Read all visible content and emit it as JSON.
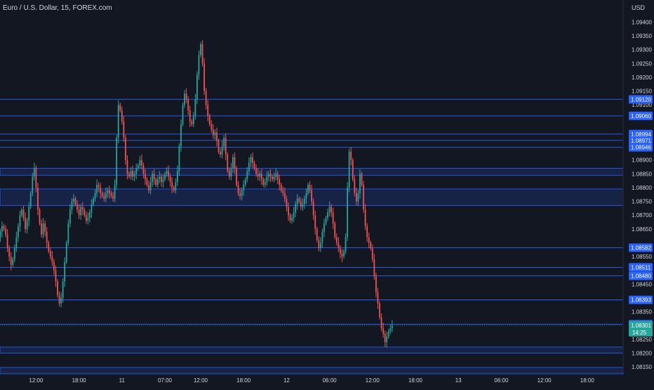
{
  "header": {
    "symbol_title": "Euro / U.S. Dollar, 15, FOREX.com"
  },
  "colors": {
    "background": "#131722",
    "up": "#26a69a",
    "down": "#ef5350",
    "level_line": "#2962ff",
    "zone_fill": "#1e3a8a",
    "axis_text": "#d1d4dc",
    "label_bg": "#2962ff",
    "current_price_bg": "#26a69a"
  },
  "chart_data": {
    "type": "candlestick",
    "title": "Euro / U.S. Dollar, 15, FOREX.com",
    "currency_label": "USD",
    "ylim": [
      1.0813,
      1.0948
    ],
    "y_ticks": [
      "1.09400",
      "1.09350",
      "1.09300",
      "1.09250",
      "1.09200",
      "1.09150",
      "1.09100",
      "1.08900",
      "1.08850",
      "1.08800",
      "1.08750",
      "1.08700",
      "1.08650",
      "1.08550",
      "1.08450",
      "1.08350",
      "1.08250",
      "1.08200",
      "1.08150"
    ],
    "x_ticks": [
      "12:00",
      "18:00",
      "11",
      "07:00",
      "12:00",
      "18:00",
      "12",
      "06:00",
      "12:00",
      "18:00",
      "13",
      "06:00",
      "12:00",
      "18:00"
    ],
    "x_tick_index": [
      28,
      52,
      76,
      100,
      120,
      144,
      168,
      192,
      216,
      240,
      264,
      288,
      312,
      336
    ],
    "horizontal_levels": [
      1.0912,
      1.0906,
      1.08994,
      1.08971,
      1.08946,
      1.08582,
      1.08511,
      1.0848,
      1.08393,
      1.08305
    ],
    "level_labels": [
      "1.09120",
      "1.09060",
      "1.08994",
      "1.08971",
      "1.08946",
      "1.08582",
      "1.08511",
      "1.08480",
      "1.08393",
      "1.08305"
    ],
    "zones": [
      {
        "from": 1.08845,
        "to": 1.0887
      },
      {
        "from": 1.08735,
        "to": 1.08795
      },
      {
        "from": 1.082,
        "to": 1.08222
      },
      {
        "from": 1.08125,
        "to": 1.08148
      }
    ],
    "current_price": {
      "value": 1.08301,
      "label": "1.08301",
      "countdown": "14:25"
    },
    "series_close": [
      1.0859,
      1.0858,
      1.086,
      1.0862,
      1.086,
      1.0858,
      1.0859,
      1.0862,
      1.0864,
      1.0866,
      1.0865,
      1.0863,
      1.0858,
      1.0855,
      1.0852,
      1.0854,
      1.0858,
      1.0862,
      1.0866,
      1.087,
      1.0872,
      1.0869,
      1.0865,
      1.0868,
      1.0873,
      1.0878,
      1.0884,
      1.0887,
      1.088,
      1.0872,
      1.0867,
      1.0863,
      1.0867,
      1.0864,
      1.086,
      1.0857,
      1.0855,
      1.0853,
      1.085,
      1.0846,
      1.0841,
      1.0838,
      1.084,
      1.0846,
      1.0853,
      1.086,
      1.0867,
      1.0872,
      1.0875,
      1.0876,
      1.0874,
      1.0872,
      1.087,
      1.0873,
      1.0872,
      1.087,
      1.0868,
      1.0869,
      1.0871,
      1.0874,
      1.0876,
      1.0878,
      1.0881,
      1.088,
      1.0878,
      1.0877,
      1.0876,
      1.0878,
      1.0879,
      1.0878,
      1.0877,
      1.0876,
      1.0881,
      1.0898,
      1.091,
      1.0908,
      1.0904,
      1.0898,
      1.089,
      1.0885,
      1.0884,
      1.0886,
      1.0884,
      1.0885,
      1.0887,
      1.0888,
      1.089,
      1.0888,
      1.0885,
      1.0883,
      1.0881,
      1.0879,
      1.0882,
      1.0885,
      1.0883,
      1.0881,
      1.0883,
      1.0884,
      1.0882,
      1.0883,
      1.0885,
      1.0886,
      1.0884,
      1.0882,
      1.088,
      1.0879,
      1.0882,
      1.0886,
      1.0895,
      1.0903,
      1.091,
      1.0914,
      1.0912,
      1.0908,
      1.0904,
      1.0903,
      1.0906,
      1.0912,
      1.0921,
      1.0928,
      1.0932,
      1.0925,
      1.0915,
      1.091,
      1.0906,
      1.0903,
      1.0901,
      1.0899,
      1.09,
      1.0897,
      1.0893,
      1.0892,
      1.0895,
      1.0898,
      1.0892,
      1.0886,
      1.0884,
      1.0887,
      1.0891,
      1.0887,
      1.0881,
      1.0878,
      1.0877,
      1.0879,
      1.0881,
      1.0883,
      1.0886,
      1.0889,
      1.0891,
      1.0889,
      1.0887,
      1.0885,
      1.0884,
      1.0885,
      1.0883,
      1.0881,
      1.0882,
      1.0884,
      1.0885,
      1.0884,
      1.0883,
      1.0884,
      1.0885,
      1.0883,
      1.0881,
      1.0879,
      1.0878,
      1.0876,
      1.0873,
      1.087,
      1.0868,
      1.0869,
      1.0871,
      1.0874,
      1.0876,
      1.0875,
      1.0873,
      1.0874,
      1.0876,
      1.0878,
      1.0881,
      1.0879,
      1.0875,
      1.087,
      1.0865,
      1.0861,
      1.0858,
      1.086,
      1.0864,
      1.0867,
      1.0869,
      1.0871,
      1.0873,
      1.0871,
      1.0867,
      1.0862,
      1.086,
      1.0858,
      1.0856,
      1.0855,
      1.0857,
      1.0862,
      1.088,
      1.0893,
      1.089,
      1.0883,
      1.0878,
      1.0875,
      1.0878,
      1.0885,
      1.0881,
      1.0872,
      1.0866,
      1.0862,
      1.086,
      1.0858,
      1.0854,
      1.0848,
      1.0842,
      1.0838,
      1.0833,
      1.0829,
      1.0827,
      1.0824,
      1.0826,
      1.0828,
      1.0829,
      1.083
    ]
  }
}
